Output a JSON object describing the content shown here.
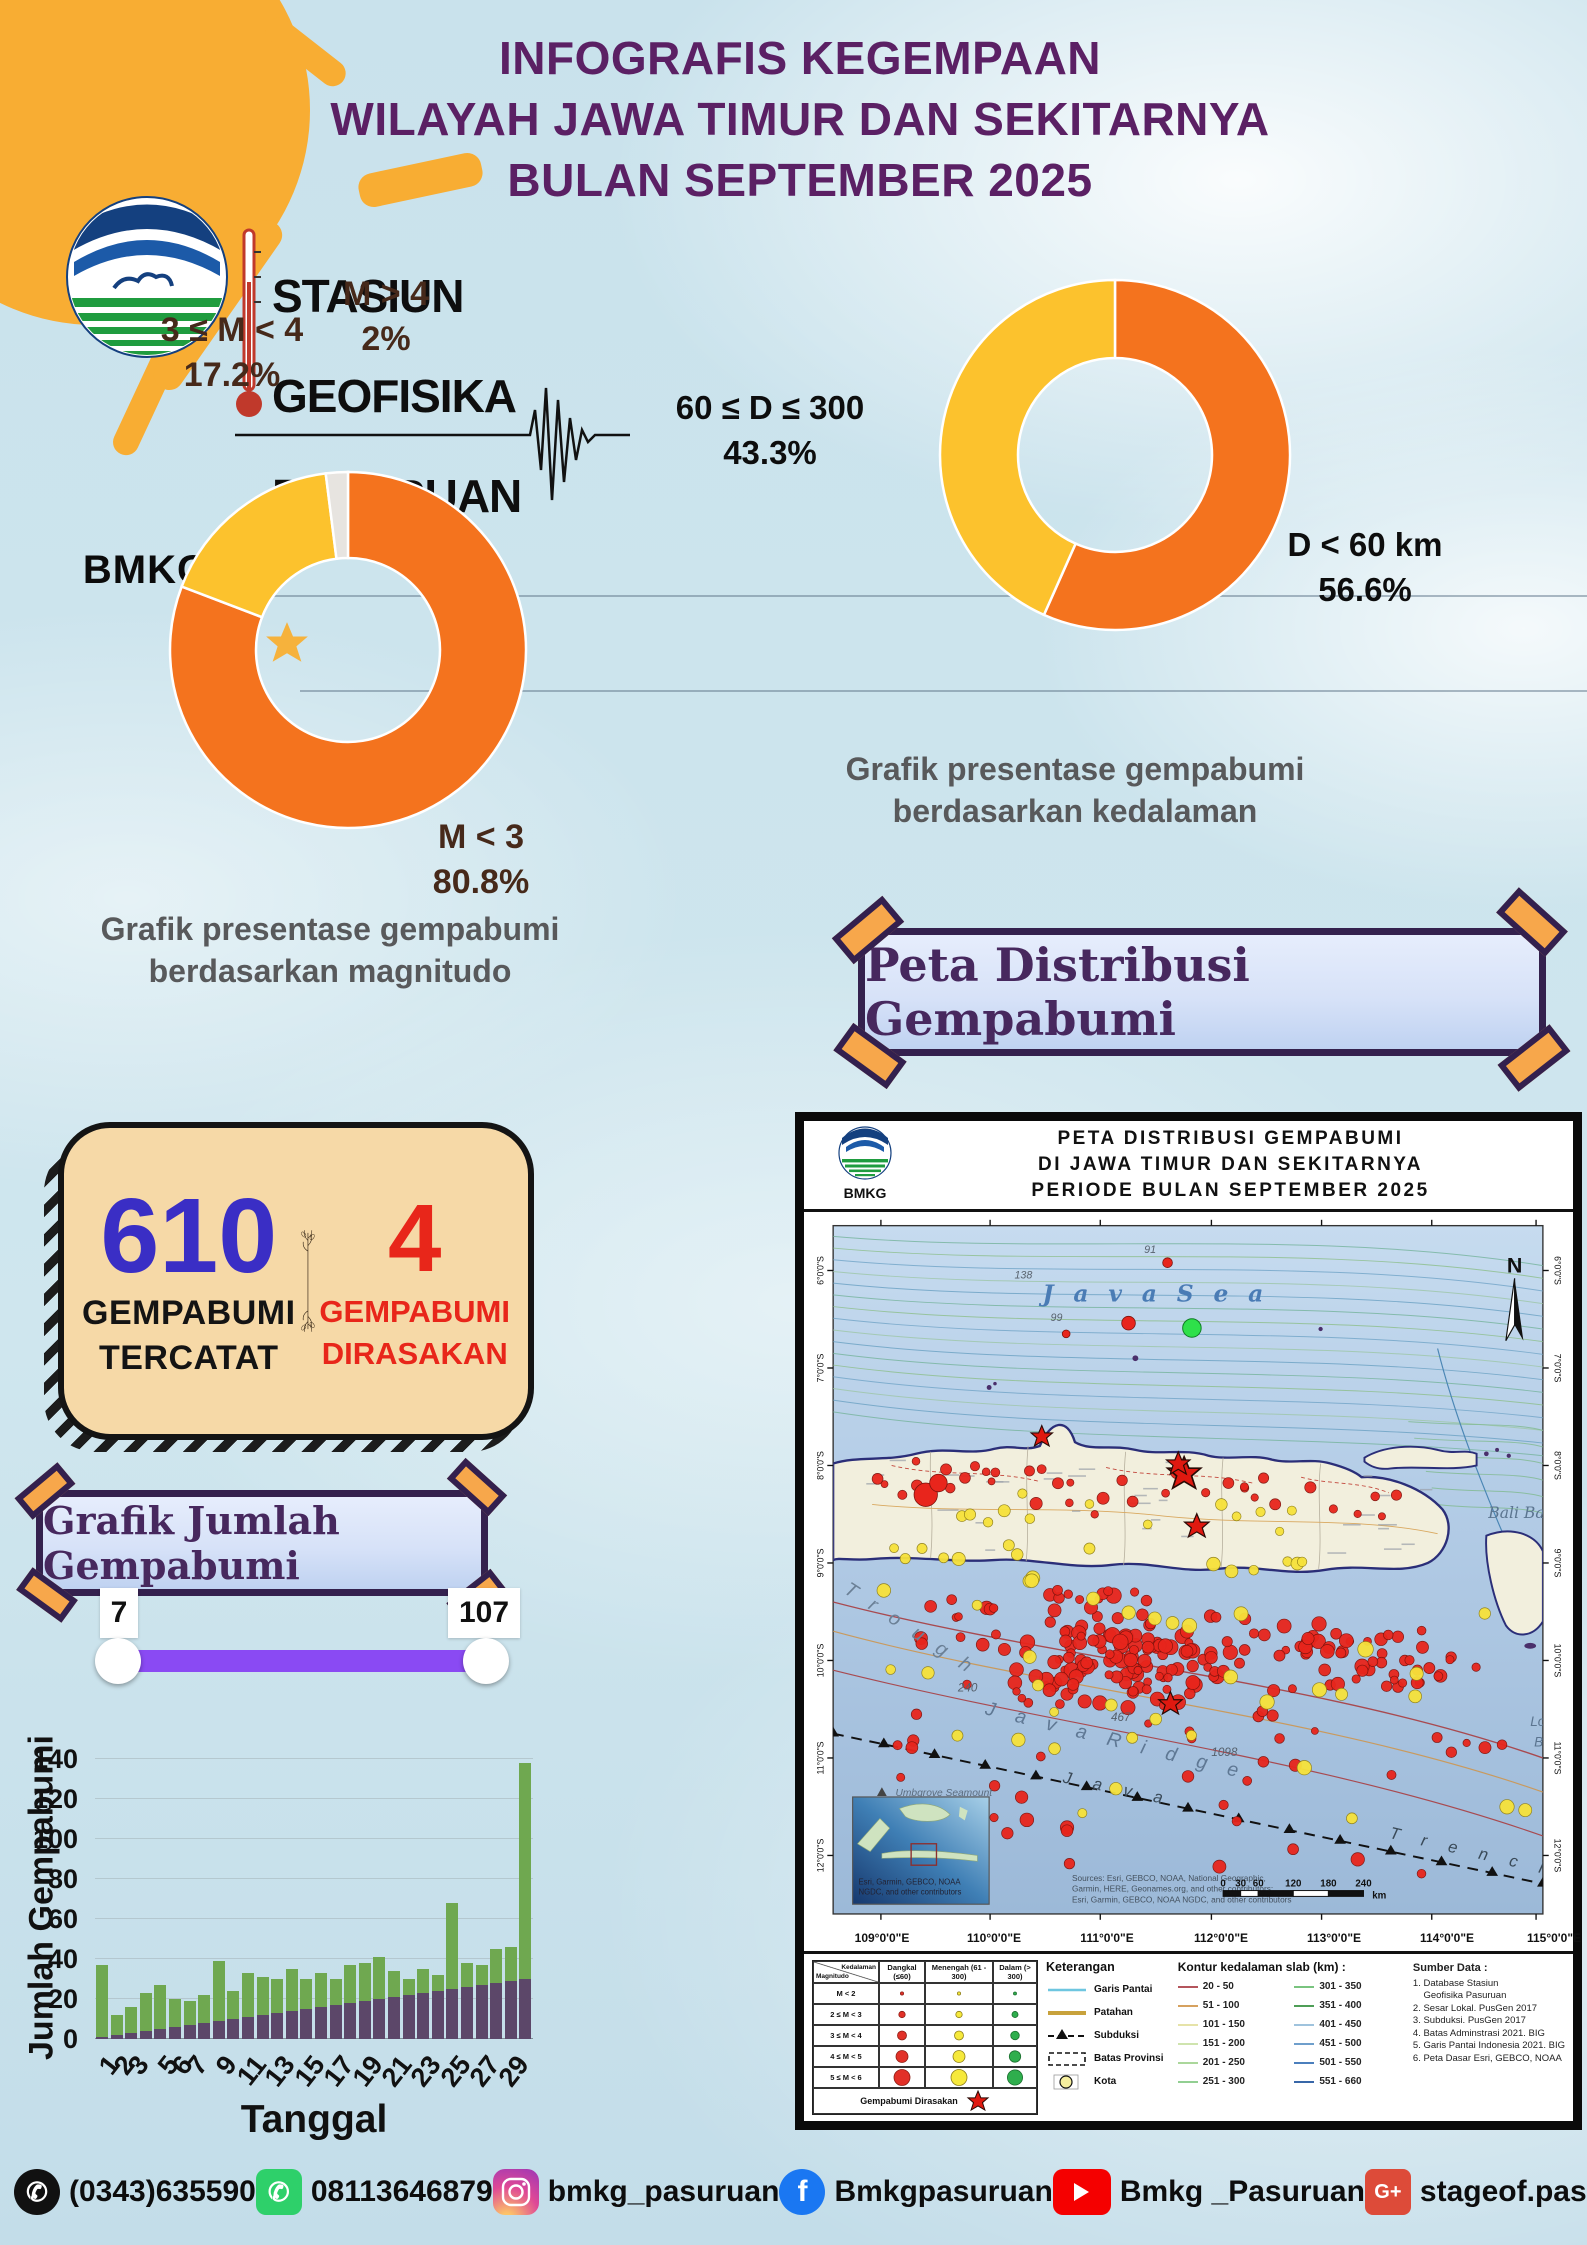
{
  "header": {
    "logo_text": "BMKG",
    "station_lines": [
      "STASIUN",
      "GEOFISIKA",
      "PASURUAN"
    ],
    "title_lines": [
      "INFOGRAFIS KEGEMPAAN",
      "WILAYAH JAWA TIMUR DAN SEKITARNYA",
      "BULAN SEPTEMBER  2025"
    ]
  },
  "colors": {
    "orange": "#F4731E",
    "yellow": "#FCC22D",
    "gray_slice": "#E7E4E0",
    "title_purple": "#5B2064",
    "bar_green": "#6FA850",
    "bar_purple": "#5C4769",
    "slider_purple": "#8A4AF3",
    "stats_blue": "#3A2EC5",
    "stats_red": "#E8261A"
  },
  "chart_data": [
    {
      "type": "pie",
      "donut": true,
      "title": "Grafik presentase gempabumi berdasarkan magnitudo",
      "labels": [
        "M < 3",
        "3 ≤ M < 4",
        "M > 4"
      ],
      "values": [
        80.8,
        17.2,
        2.0
      ],
      "colors": [
        "#F4731E",
        "#FCC22D",
        "#E7E4E0"
      ],
      "legend_position": "none"
    },
    {
      "type": "pie",
      "donut": true,
      "title": "Grafik presentase gempabumi berdasarkan kedalaman",
      "labels": [
        "D < 60 km",
        "60 ≤ D ≤ 300"
      ],
      "values": [
        56.6,
        43.3
      ],
      "colors": [
        "#F4731E",
        "#FCC22D"
      ],
      "legend_position": "none"
    },
    {
      "type": "bar",
      "stacked": true,
      "title": "Grafik Jumlah Gempabumi",
      "xlabel": "Tanggal",
      "ylabel": "Jumlah Gempabumi",
      "ylim": [
        0,
        140
      ],
      "yticks": [
        0,
        20,
        40,
        60,
        80,
        100,
        120,
        140
      ],
      "categories": [
        1,
        2,
        3,
        4,
        5,
        6,
        7,
        8,
        9,
        10,
        11,
        12,
        13,
        14,
        15,
        16,
        17,
        18,
        19,
        20,
        21,
        22,
        23,
        24,
        25,
        26,
        27,
        28,
        29,
        30
      ],
      "series": [
        {
          "name": "lower-purple",
          "color": "#5C4769",
          "values": [
            1,
            2,
            3,
            4,
            5,
            6,
            7,
            8,
            9,
            10,
            11,
            12,
            13,
            14,
            15,
            16,
            17,
            18,
            19,
            20,
            21,
            22,
            23,
            24,
            25,
            26,
            27,
            28,
            29,
            30
          ]
        },
        {
          "name": "upper-green",
          "color": "#6FA850",
          "values": [
            36,
            10,
            13,
            19,
            22,
            14,
            12,
            14,
            30,
            14,
            22,
            19,
            17,
            21,
            15,
            17,
            13,
            19,
            19,
            21,
            13,
            8,
            12,
            8,
            43,
            12,
            10,
            17,
            17,
            108
          ]
        }
      ],
      "visible_x_labels": [
        1,
        2,
        3,
        5,
        6,
        7,
        9,
        11,
        13,
        15,
        17,
        19,
        21,
        23,
        25,
        27,
        29
      ]
    }
  ],
  "donut1_labels": {
    "slice2_line1": "3 ≤ M < 4",
    "slice2_line2": "17.2%",
    "slice3_line1": "M > 4",
    "slice3_line2": "2%",
    "slice1_line1": "M < 3",
    "slice1_line2": "80.8%",
    "caption_line1": "Grafik presentase gempabumi",
    "caption_line2": "berdasarkan magnitudo"
  },
  "donut2_labels": {
    "slice2_line1": "60 ≤ D ≤ 300",
    "slice2_line2": "43.3%",
    "slice1_line1": "D < 60 km",
    "slice1_line2": "56.6%",
    "caption_line1": "Grafik presentase gempabumi",
    "caption_line2": "berdasarkan kedalaman"
  },
  "map_banner": "Peta Distribusi Gempabumi",
  "stats": {
    "recorded_value": "610",
    "recorded_label_line1": "GEMPABUMI",
    "recorded_label_line2": "TERCATAT",
    "felt_value": "4",
    "felt_label_line1": "GEMPABUMI",
    "felt_label_line2": "DIRASAKAN"
  },
  "chart_banner": "Grafik Jumlah Gempabumi",
  "slider": {
    "min_label": "7",
    "max_label": "107"
  },
  "map": {
    "title_lines": [
      "PETA DISTRIBUSI GEMPABUMI",
      "DI JAWA TIMUR DAN SEKITARNYA",
      "PERIODE BULAN  SEPTEMBER 2025"
    ],
    "logo_text": "BMKG",
    "compass": "N",
    "sea_label": "J a v a   S e a",
    "labels": {
      "trough": "T r o u g h",
      "java_ridge": "J a v a   R i d g e",
      "java_trench_1": "J a v a",
      "java_trench_2": "T r e n c h",
      "bali_basin": "Bali Bas",
      "lombok_1": "Lor",
      "lombok_2": "Ba",
      "seamount": "Umbgrove Seamount",
      "n91": "91",
      "n99": "99",
      "n138": "138",
      "n240": "240",
      "n467": "467",
      "n1098": "1098"
    },
    "x_ticks": [
      "109°0'0\"E",
      "110°0'0\"E",
      "111°0'0\"E",
      "112°0'0\"E",
      "113°0'0\"E",
      "114°0'0\"E",
      "115°0'0\"E"
    ],
    "y_ticks": [
      "6°0'0\"S",
      "7°0'0\"S",
      "8°0'0\"S",
      "9°0'0\"S",
      "10°0'0\"S",
      "11°0'0\"S",
      "12°0'0\"S"
    ],
    "scale": {
      "ticks": [
        "0",
        "30",
        "60",
        "120",
        "180",
        "240"
      ],
      "unit": "km"
    },
    "sources_lines": [
      "Sources: Esri, GEBCO, NOAA, National Geographic,",
      "Garmin, HERE, Geonames.org, and other contributors;",
      "Esri, Garmin, GEBCO, NOAA NGDC, and other contributors"
    ],
    "inset_credit_lines": [
      "Esri, Garmin, GEBCO, NOAA",
      "NGDC, and other contributors"
    ],
    "legend": {
      "matrix": {
        "header_top": "Kedalaman",
        "header_left": "Magnitudo",
        "columns": [
          "Dangkal (≤60)",
          "Menengah (61 - 300)",
          "Dalam (> 300)"
        ],
        "rows": [
          "M < 2",
          "2 ≤ M < 3",
          "3 ≤ M < 4",
          "4 ≤ M < 5",
          "5 ≤ M < 6"
        ],
        "felt_label": "Gempabumi Dirasakan"
      },
      "keterangan": {
        "title": "Keterangan",
        "items": [
          "Garis Pantai",
          "Patahan",
          "Subduksi",
          "Batas Provinsi",
          "Kota"
        ]
      },
      "kontur": {
        "title": "Kontur kedalaman slab (km) :",
        "col1": [
          "20 - 50",
          "51 - 100",
          "101 - 150",
          "151 - 200",
          "201 - 250",
          "251 - 300"
        ],
        "col2": [
          "301 - 350",
          "351 - 400",
          "401 - 450",
          "451 - 500",
          "501 - 550",
          "551 - 660"
        ]
      },
      "sumber": {
        "title": "Sumber Data :",
        "items": [
          "1. Database Stasiun",
          "    Geofisika Pasuruan",
          "2. Sesar Lokal. PusGen 2017",
          "3. Subduksi. PusGen 2017",
          "4. Batas Adminstrasi 2021. BIG",
          "5. Garis Pantai Indonesia 2021. BIG",
          "6. Peta Dasar Esri, GEBCO, NOAA"
        ]
      }
    }
  },
  "footer": {
    "items": [
      {
        "type": "phone",
        "text": "(0343)635590"
      },
      {
        "type": "whatsapp",
        "text": "08113646879"
      },
      {
        "type": "instagram",
        "text": "bmkg_pasuruan"
      },
      {
        "type": "facebook",
        "text": "Bmkgpasuruan"
      },
      {
        "type": "youtube",
        "text": "Bmkg _Pasuruan"
      },
      {
        "type": "gplus",
        "text": "stageof.pasuruan@bmkg.go.id"
      }
    ]
  }
}
